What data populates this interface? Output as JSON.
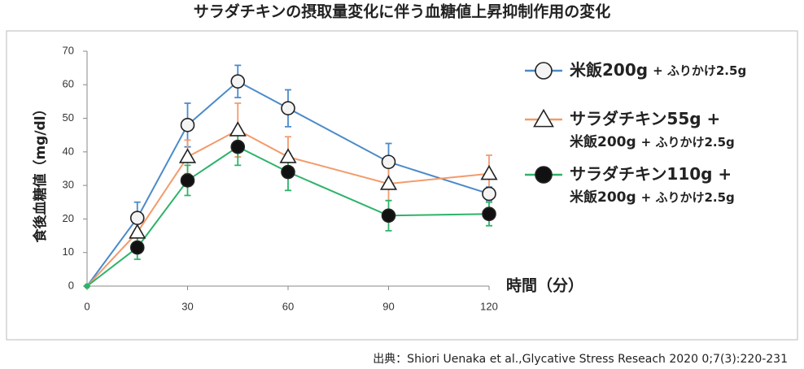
{
  "chart_data": {
    "type": "line",
    "title": "サラダチキンの摂取量変化に伴う血糖値上昇抑制作用の変化",
    "xlabel": "時間（分）",
    "ylabel": "食後血糖値（mg/dl）",
    "source": "出典：Shiori Uenaka et al.,Glycative Stress Reseach 2020 0;7(3):220-231",
    "x": [
      0,
      15,
      30,
      45,
      60,
      90,
      120
    ],
    "xlim": [
      0,
      120
    ],
    "xticks": [
      0,
      30,
      60,
      90,
      120
    ],
    "ylim": [
      0,
      70
    ],
    "yticks": [
      0,
      10,
      20,
      30,
      40,
      50,
      60,
      70
    ],
    "grid": false,
    "series": [
      {
        "name": [
          "米飯200g",
          "+ ふりかけ2.5g"
        ],
        "color": "#4a8ac9",
        "marker": "circle-open",
        "values": [
          0,
          20.3,
          48,
          61,
          53,
          37,
          27.5
        ],
        "errors": [
          0,
          4.7,
          6.5,
          4.8,
          5.5,
          5.5,
          2
        ]
      },
      {
        "name": [
          "サラダチキン55g +",
          "米飯200g",
          "+ ふりかけ2.5g"
        ],
        "color": "#f39b6b",
        "marker": "triangle-open",
        "values": [
          0,
          16,
          38.5,
          46.5,
          38.5,
          30.5,
          33.5
        ],
        "errors": [
          0,
          4,
          5,
          8,
          6,
          5,
          5.5
        ]
      },
      {
        "name": [
          "サラダチキン110g +",
          "米飯200g",
          "+ ふりかけ2.5g"
        ],
        "color": "#2db36b",
        "marker": "circle-filled",
        "values": [
          0,
          11.5,
          31.5,
          41.5,
          34,
          21,
          21.5
        ],
        "errors": [
          0,
          3.5,
          4.5,
          5.5,
          5.5,
          4.5,
          3.5
        ]
      }
    ]
  }
}
